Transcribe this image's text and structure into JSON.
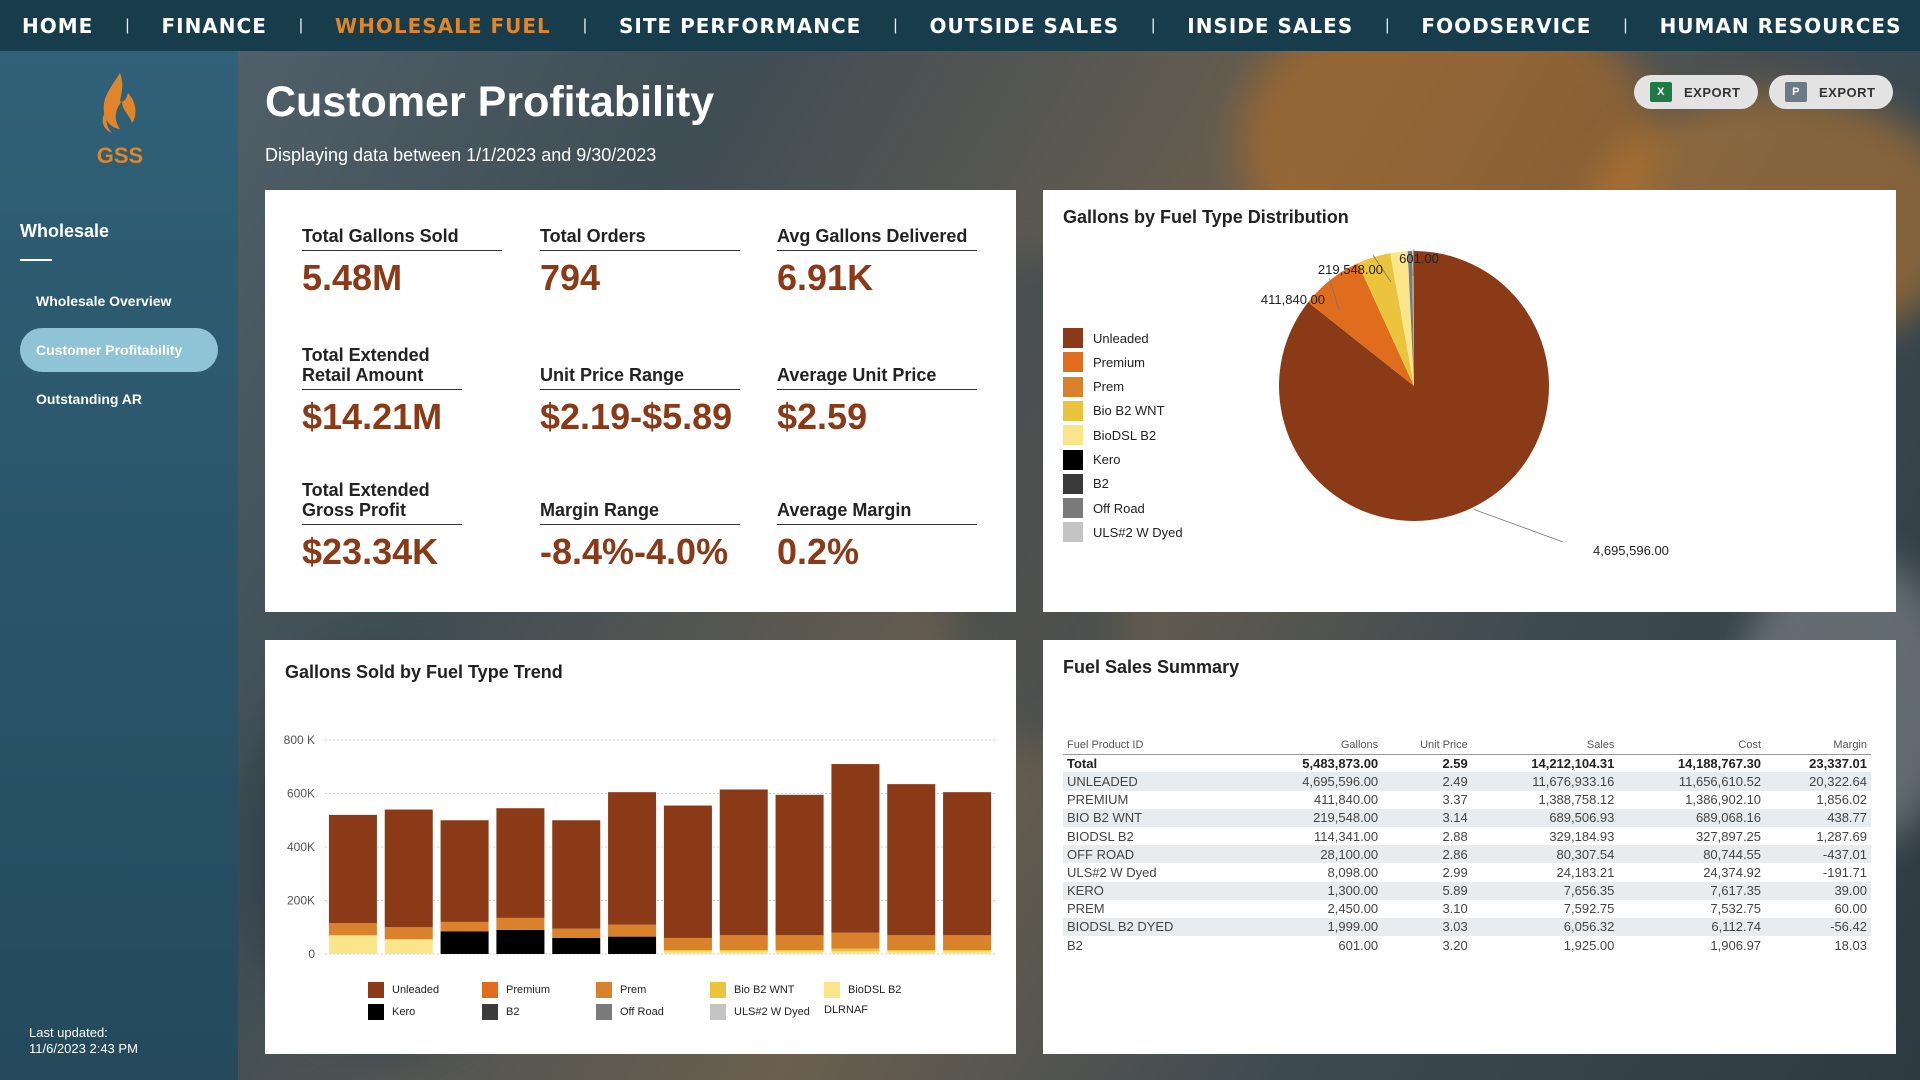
{
  "nav": [
    "HOME",
    "FINANCE",
    "WHOLESALE FUEL",
    "SITE PERFORMANCE",
    "OUTSIDE SALES",
    "INSIDE SALES",
    "FOODSERVICE",
    "HUMAN RESOURCES"
  ],
  "nav_active": "WHOLESALE FUEL",
  "logo_text": "GSS",
  "sidebar": {
    "heading": "Wholesale",
    "items": [
      "Wholesale Overview",
      "Customer Profitability",
      "Outstanding AR"
    ],
    "active": "Customer Profitability",
    "last_updated_label": "Last updated:",
    "last_updated_value": "11/6/2023 2:43 PM"
  },
  "header": {
    "title": "Customer Profitability",
    "subtitle": "Displaying data between 1/1/2023 and 9/30/2023",
    "export_excel": "EXPORT",
    "export_pdf": "EXPORT"
  },
  "kpis": [
    {
      "label": "Total Gallons Sold",
      "value": "5.48M"
    },
    {
      "label": "Total Orders",
      "value": "794"
    },
    {
      "label": "Avg Gallons Delivered",
      "value": "6.91K"
    },
    {
      "label": "Total Extended Retail Amount",
      "value": "$14.21M"
    },
    {
      "label": "Unit Price Range",
      "value": "$2.19-$5.89"
    },
    {
      "label": "Average Unit Price",
      "value": "$2.59"
    },
    {
      "label": "Total Extended Gross Profit",
      "value": "$23.34K"
    },
    {
      "label": "Margin Range",
      "value": "-8.4%-4.0%"
    },
    {
      "label": "Average Margin",
      "value": "0.2%"
    }
  ],
  "colors": {
    "Unleaded": "#8b3a17",
    "Premium": "#e06c1e",
    "Prem": "#d9822b",
    "Bio B2 WNT": "#eac43c",
    "BioDSL B2": "#fbe58a",
    "Kero": "#000000",
    "B2": "#3a3a3a",
    "Off Road": "#7a7a7a",
    "ULS#2 W Dyed": "#c4c4c4",
    "DLRNAF": "#ffffff"
  },
  "chart_data": [
    {
      "type": "pie",
      "title": "Gallons by Fuel Type Distribution",
      "legend": [
        "Unleaded",
        "Premium",
        "Prem",
        "Bio B2 WNT",
        "BioDSL B2",
        "Kero",
        "B2",
        "Off Road",
        "ULS#2 W Dyed"
      ],
      "slices": [
        {
          "name": "Unleaded",
          "value": 4695596.0,
          "label": "4,695,596.00"
        },
        {
          "name": "Premium",
          "value": 411840.0,
          "label": "411,840.00"
        },
        {
          "name": "Bio B2 WNT",
          "value": 219548.0,
          "label": "219,548.00"
        },
        {
          "name": "BioDSL B2",
          "value": 114341.0,
          "label": ""
        },
        {
          "name": "Off Road",
          "value": 28100.0,
          "label": ""
        },
        {
          "name": "ULS#2 W Dyed",
          "value": 8098.0,
          "label": ""
        },
        {
          "name": "Prem",
          "value": 2450.0,
          "label": ""
        },
        {
          "name": "Kero",
          "value": 1300.0,
          "label": ""
        },
        {
          "name": "B2",
          "value": 601.0,
          "label": "601.00"
        }
      ]
    },
    {
      "type": "bar",
      "stacked": true,
      "title": "Gallons Sold by Fuel Type Trend",
      "ylim": [
        0,
        800000
      ],
      "yticks": [
        "0",
        "200K",
        "400K",
        "600K",
        "800 K"
      ],
      "legend_items": [
        "Unleaded",
        "Premium",
        "Prem",
        "Bio B2 WNT",
        "BioDSL B2",
        "Kero",
        "B2",
        "Off Road",
        "ULS#2 W Dyed",
        "DLRNAF"
      ],
      "series": [
        {
          "name": "BioDSL B2",
          "values": [
            70000,
            55000,
            0,
            0,
            0,
            0,
            10000,
            10000,
            10000,
            10000,
            10000,
            10000
          ]
        },
        {
          "name": "Kero",
          "values": [
            0,
            0,
            85000,
            90000,
            60000,
            65000,
            0,
            0,
            0,
            0,
            0,
            0
          ]
        },
        {
          "name": "Bio B2 WNT",
          "values": [
            0,
            0,
            0,
            0,
            0,
            0,
            5000,
            5000,
            5000,
            10000,
            5000,
            5000
          ]
        },
        {
          "name": "Prem",
          "values": [
            45000,
            45000,
            35000,
            45000,
            35000,
            45000,
            45000,
            55000,
            55000,
            60000,
            55000,
            55000
          ]
        },
        {
          "name": "Unleaded",
          "values": [
            405000,
            440000,
            380000,
            410000,
            405000,
            495000,
            495000,
            545000,
            525000,
            630000,
            565000,
            535000
          ]
        }
      ]
    }
  ],
  "table": {
    "title": "Fuel Sales Summary",
    "headers": [
      "Fuel Product ID",
      "Gallons",
      "Unit Price",
      "Sales",
      "Cost",
      "Margin"
    ],
    "total": [
      "Total",
      "5,483,873.00",
      "2.59",
      "14,212,104.31",
      "14,188,767.30",
      "23,337.01"
    ],
    "rows": [
      [
        "UNLEADED",
        "4,695,596.00",
        "2.49",
        "11,676,933.16",
        "11,656,610.52",
        "20,322.64"
      ],
      [
        "PREMIUM",
        "411,840.00",
        "3.37",
        "1,388,758.12",
        "1,386,902.10",
        "1,856.02"
      ],
      [
        "BIO B2 WNT",
        "219,548.00",
        "3.14",
        "689,506.93",
        "689,068.16",
        "438.77"
      ],
      [
        "BIODSL B2",
        "114,341.00",
        "2.88",
        "329,184.93",
        "327,897.25",
        "1,287.69"
      ],
      [
        "OFF ROAD",
        "28,100.00",
        "2.86",
        "80,307.54",
        "80,744.55",
        "-437.01"
      ],
      [
        "ULS#2 W Dyed",
        "8,098.00",
        "2.99",
        "24,183.21",
        "24,374.92",
        "-191.71"
      ],
      [
        "KERO",
        "1,300.00",
        "5.89",
        "7,656.35",
        "7,617.35",
        "39.00"
      ],
      [
        "PREM",
        "2,450.00",
        "3.10",
        "7,592.75",
        "7,532.75",
        "60.00"
      ],
      [
        "BIODSL B2 DYED",
        "1,999.00",
        "3.03",
        "6,056.32",
        "6,112.74",
        "-56.42"
      ],
      [
        "B2",
        "601.00",
        "3.20",
        "1,925.00",
        "1,906.97",
        "18.03"
      ]
    ]
  }
}
